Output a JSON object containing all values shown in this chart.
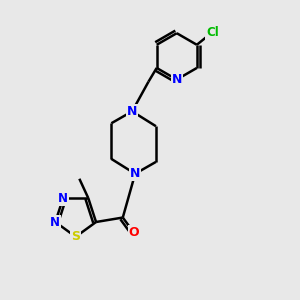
{
  "background_color": "#e8e8e8",
  "bond_color": "#000000",
  "bond_width": 1.8,
  "figsize": [
    3.0,
    3.0
  ],
  "dpi": 100,
  "colors": {
    "N": "#0000ff",
    "O": "#ff0000",
    "S": "#cccc00",
    "Cl": "#00bb00",
    "C": "#000000"
  }
}
